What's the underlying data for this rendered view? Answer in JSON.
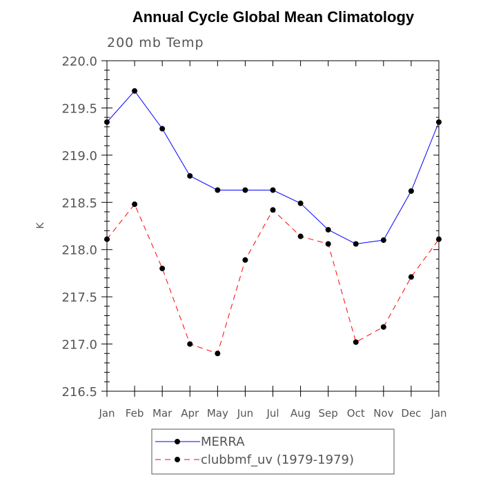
{
  "chart_data": {
    "type": "line",
    "title": "Annual Cycle Global Mean Climatology",
    "subtitle": "200 mb Temp",
    "xlabel": "",
    "ylabel": "K",
    "categories": [
      "Jan",
      "Feb",
      "Mar",
      "Apr",
      "May",
      "Jun",
      "Jul",
      "Aug",
      "Sep",
      "Oct",
      "Nov",
      "Dec",
      "Jan"
    ],
    "ylim": [
      216.5,
      220.0
    ],
    "yticks": [
      "216.5",
      "217.0",
      "217.5",
      "218.0",
      "218.5",
      "219.0",
      "219.5",
      "220.0"
    ],
    "legend_position": "bottom-center",
    "series": [
      {
        "name": "MERRA",
        "color": "#0000ff",
        "dash": "solid",
        "marker": "circle",
        "values": [
          219.35,
          219.68,
          219.28,
          218.78,
          218.63,
          218.63,
          218.63,
          218.49,
          218.21,
          218.06,
          218.1,
          218.62,
          219.35
        ]
      },
      {
        "name": "clubbmf_uv (1979-1979)",
        "color": "#ff0000",
        "dash": "dashed",
        "marker": "circle",
        "values": [
          218.11,
          218.48,
          217.8,
          217.0,
          216.9,
          217.89,
          218.42,
          218.14,
          218.06,
          217.02,
          217.18,
          217.71,
          218.11
        ]
      }
    ]
  }
}
